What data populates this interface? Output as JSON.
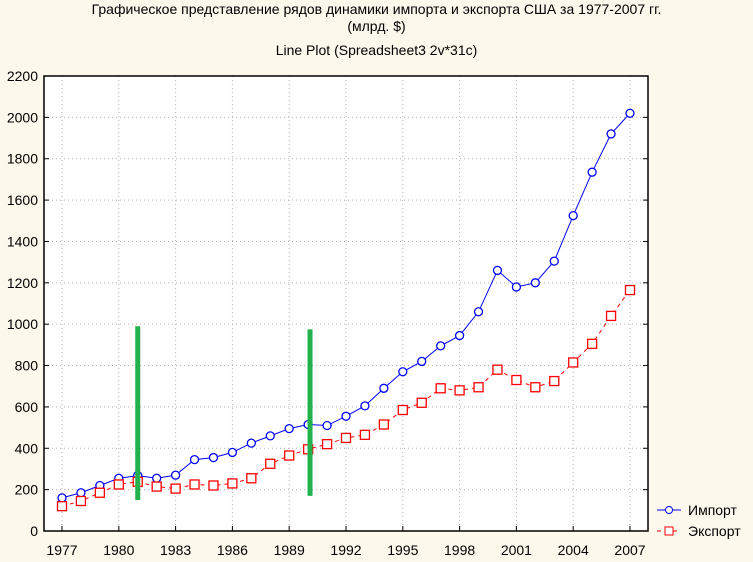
{
  "chart_data": {
    "type": "line",
    "title": "Графическое представление рядов динамики импорта и экспорта США за 1977-2007 гг.",
    "subtitle": "(млрд. $)",
    "plot_label": "Line Plot (Spreadsheet3 2v*31c)",
    "xlabel": "",
    "ylabel": "",
    "xlim": [
      1976,
      2008
    ],
    "ylim": [
      0,
      2200
    ],
    "x_ticks": [
      "1977",
      "1980",
      "1983",
      "1986",
      "1989",
      "1992",
      "1995",
      "1998",
      "2001",
      "2004",
      "2007"
    ],
    "y_ticks": [
      "0",
      "200",
      "400",
      "600",
      "800",
      "1000",
      "1200",
      "1400",
      "1600",
      "1800",
      "2000",
      "2200"
    ],
    "grid": true,
    "legend_position": "bottom-right",
    "x": [
      1977,
      1978,
      1979,
      1980,
      1981,
      1982,
      1983,
      1984,
      1985,
      1986,
      1987,
      1988,
      1989,
      1990,
      1991,
      1992,
      1993,
      1994,
      1995,
      1996,
      1997,
      1998,
      1999,
      2000,
      2001,
      2002,
      2003,
      2004,
      2005,
      2006,
      2007
    ],
    "series": [
      {
        "name": "Импорт",
        "color": "#0000ff",
        "marker": "circle",
        "line": "solid",
        "values": [
          160,
          185,
          220,
          255,
          268,
          255,
          270,
          345,
          355,
          380,
          425,
          460,
          495,
          515,
          510,
          555,
          605,
          690,
          770,
          820,
          895,
          945,
          1060,
          1260,
          1180,
          1200,
          1305,
          1525,
          1735,
          1920,
          2020
        ]
      },
      {
        "name": "Экспорт",
        "color": "#ff0000",
        "marker": "square",
        "line": "dashed",
        "values": [
          120,
          145,
          185,
          225,
          238,
          215,
          205,
          225,
          220,
          230,
          255,
          325,
          365,
          395,
          420,
          450,
          465,
          515,
          585,
          620,
          690,
          680,
          695,
          780,
          730,
          695,
          725,
          815,
          905,
          1040,
          1165
        ]
      }
    ],
    "annotations": [
      {
        "type": "vertical-bar",
        "x": 1981,
        "y_from": 150,
        "y_to": 990,
        "color": "#22b14c"
      },
      {
        "type": "vertical-bar",
        "x": 1990.1,
        "y_from": 170,
        "y_to": 975,
        "color": "#22b14c"
      }
    ]
  }
}
